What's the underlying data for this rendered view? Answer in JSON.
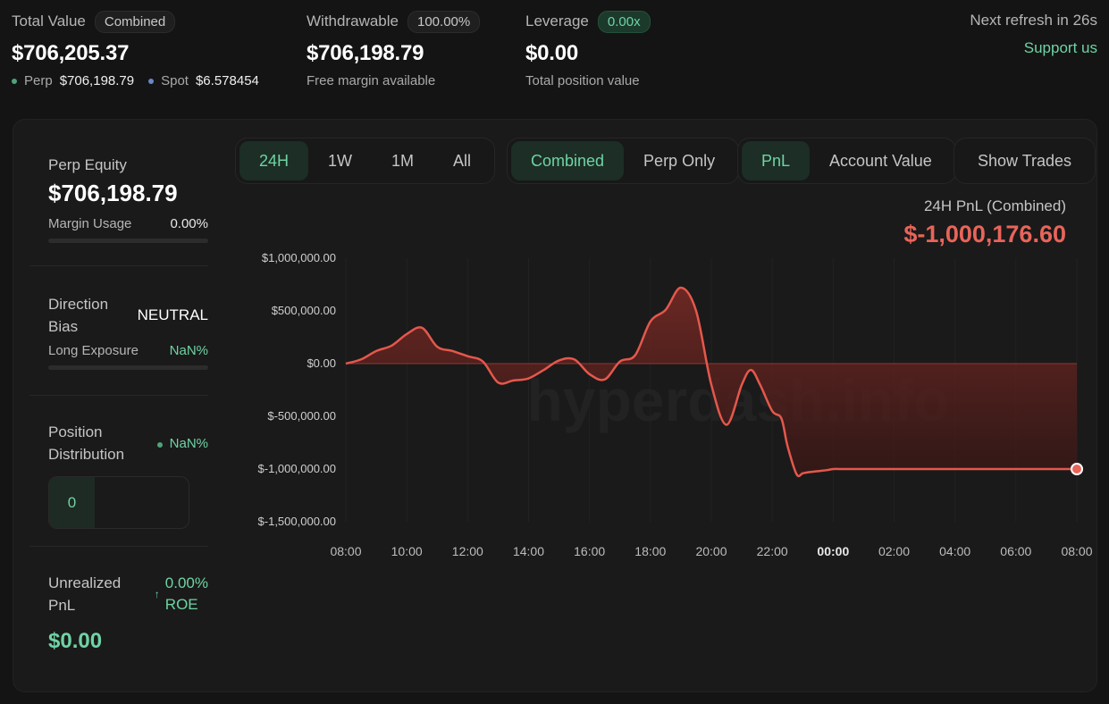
{
  "summary": {
    "total_value": {
      "label": "Total Value",
      "badge": "Combined",
      "value": "$706,205.37",
      "perp_label": "Perp",
      "perp_value": "$706,198.79",
      "spot_label": "Spot",
      "spot_value": "$6.578454"
    },
    "withdrawable": {
      "label": "Withdrawable",
      "badge": "100.00%",
      "value": "$706,198.79",
      "sub": "Free margin available"
    },
    "leverage": {
      "label": "Leverage",
      "badge": "0.00x",
      "value": "$0.00",
      "sub": "Total position value"
    },
    "refresh_text": "Next refresh in 26s",
    "support_label": "Support us"
  },
  "side": {
    "perp_equity_label": "Perp Equity",
    "perp_equity_value": "$706,198.79",
    "margin_usage_label": "Margin Usage",
    "margin_usage_value": "0.00%",
    "margin_usage_fraction": 0.0,
    "direction_label_1": "Direction",
    "direction_label_2": "Bias",
    "direction_value": "NEUTRAL",
    "long_exposure_label": "Long Exposure",
    "long_exposure_value": "NaN%",
    "position_label_1": "Position",
    "position_label_2": "Distribution",
    "position_value": "NaN%",
    "position_count": "0",
    "unrealized_label_1": "Unrealized",
    "unrealized_label_2": "PnL",
    "roe_value": "0.00%",
    "roe_label": "ROE",
    "roe_arrow": "↑",
    "unrealized_value": "$0.00"
  },
  "controls": {
    "timeframes": [
      "24H",
      "1W",
      "1M",
      "All"
    ],
    "timeframe_active": "24H",
    "scopes": [
      "Combined",
      "Perp Only"
    ],
    "scope_active": "Combined",
    "metrics": [
      "PnL",
      "Account Value"
    ],
    "metric_active": "PnL",
    "show_trades_label": "Show Trades"
  },
  "pnl_header": {
    "label": "24H PnL (Combined)",
    "value": "$-1,000,176.60"
  },
  "colors": {
    "accent_green": "#6fd3a4",
    "negative_red": "#e9645a",
    "line": "#e4584c"
  },
  "chart_data": {
    "type": "area",
    "title": "",
    "watermark": "hyperdash.info",
    "y_ticks": [
      "$1,000,000.00",
      "$500,000.00",
      "$0.00",
      "$-500,000.00",
      "$-1,000,000.00",
      "$-1,500,000.00"
    ],
    "y_tick_values": [
      1000000,
      500000,
      0,
      -500000,
      -1000000,
      -1500000
    ],
    "ylim": [
      -1500000,
      1000000
    ],
    "x_ticks": [
      "08:00",
      "10:00",
      "12:00",
      "14:00",
      "16:00",
      "18:00",
      "20:00",
      "22:00",
      "00:00",
      "02:00",
      "04:00",
      "06:00",
      "08:00"
    ],
    "x_tick_day_index": 8,
    "xlim_hours": [
      0,
      24
    ],
    "grid": true,
    "series": [
      {
        "x_hours": [
          0.0,
          0.5,
          1.0,
          1.5,
          2.0,
          2.5,
          3.0,
          3.5,
          4.0,
          4.5,
          5.0,
          5.5,
          6.0,
          6.5,
          7.0,
          7.5,
          8.0,
          8.5,
          9.0,
          9.5,
          10.0,
          10.5,
          11.0,
          11.5,
          12.0,
          12.5,
          13.0,
          13.3,
          13.6,
          14.0,
          14.3,
          14.5,
          14.8,
          15.0,
          15.2,
          15.5,
          15.8,
          16.0,
          16.3,
          16.6,
          17.0,
          17.5,
          18.0,
          19.0,
          20.0,
          21.0,
          22.0,
          23.0,
          24.0
        ],
        "values": [
          0,
          40000,
          120000,
          170000,
          280000,
          340000,
          160000,
          120000,
          70000,
          20000,
          -180000,
          -160000,
          -140000,
          -60000,
          30000,
          40000,
          -100000,
          -150000,
          20000,
          80000,
          400000,
          510000,
          720000,
          500000,
          -200000,
          -580000,
          -200000,
          -60000,
          -200000,
          -450000,
          -520000,
          -780000,
          -1050000,
          -1040000,
          -1030000,
          -1020000,
          -1010000,
          -1000000,
          -1000000,
          -1000000,
          -1000000,
          -1000000,
          -1000000,
          -1000000,
          -1000000,
          -1000000,
          -1000000,
          -1000000,
          -1000000
        ]
      }
    ]
  }
}
